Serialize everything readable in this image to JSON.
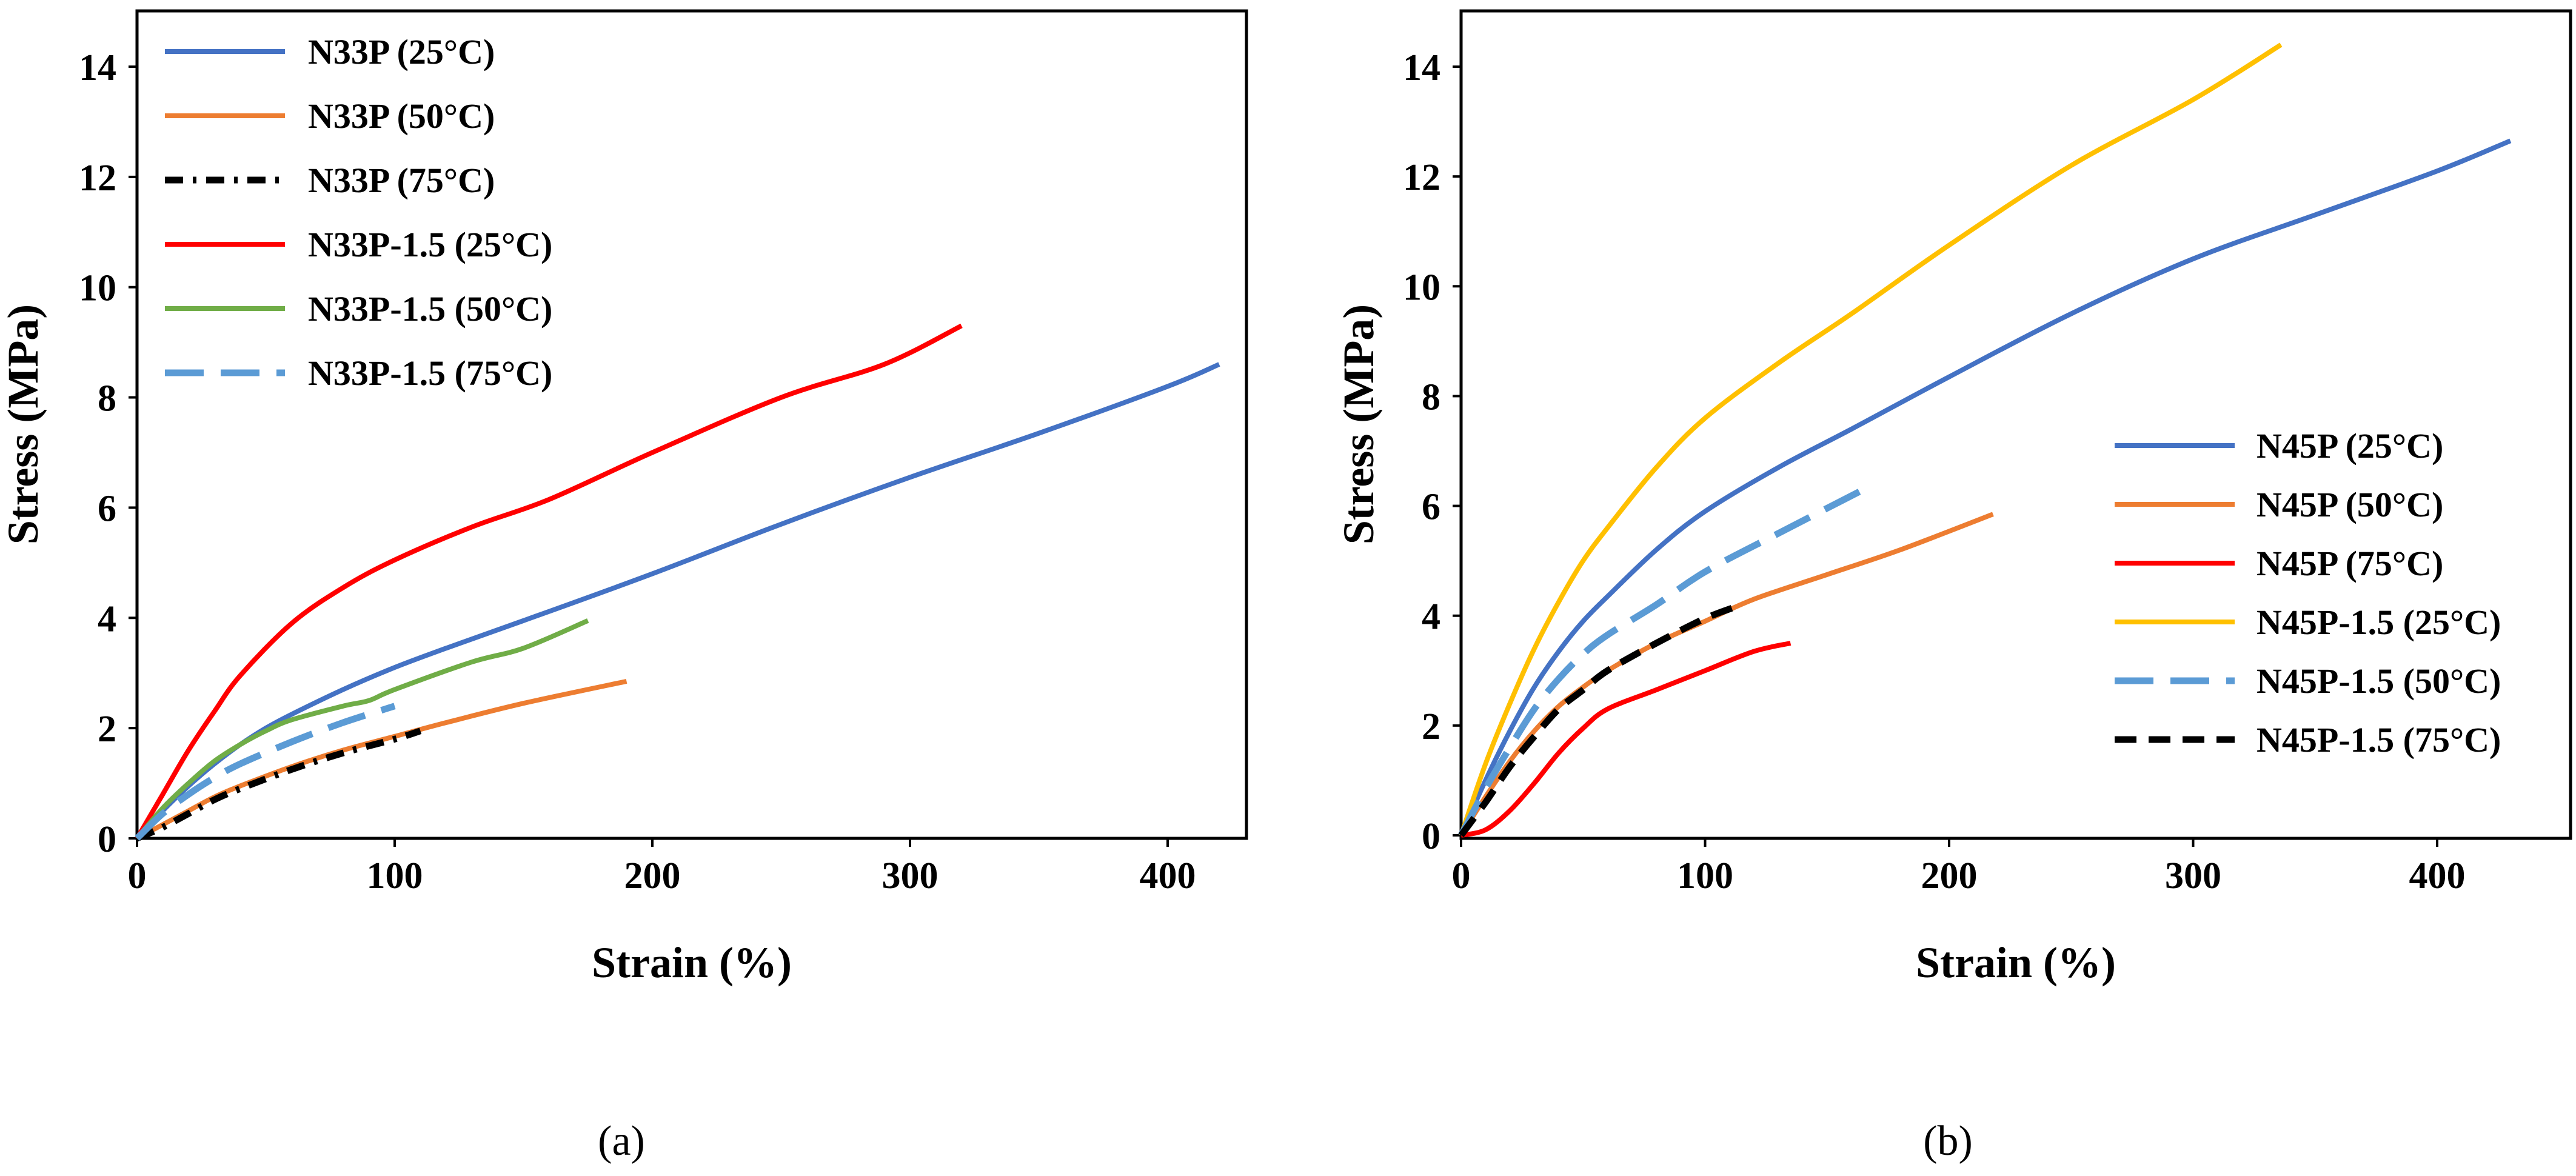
{
  "chart_data": [
    {
      "type": "line",
      "caption": "(a)",
      "xlabel": "Strain (%)",
      "ylabel": "Stress (MPa)",
      "xlim": [
        0,
        440
      ],
      "ylim": [
        0,
        15
      ],
      "xticks": [
        "0",
        "100",
        "200",
        "300",
        "400"
      ],
      "yticks": [
        "0",
        "2",
        "4",
        "6",
        "8",
        "10",
        "12",
        "14"
      ],
      "legend_position": "top-left",
      "series": [
        {
          "name": "N33P (25°C)",
          "color": "#4472C4",
          "style": "solid",
          "x": [
            0,
            10,
            20,
            30,
            40,
            50,
            60,
            80,
            100,
            120,
            150,
            200,
            250,
            300,
            350,
            400,
            420
          ],
          "y": [
            0,
            0.5,
            0.95,
            1.35,
            1.7,
            2.0,
            2.25,
            2.7,
            3.1,
            3.45,
            3.95,
            4.8,
            5.7,
            6.55,
            7.35,
            8.2,
            8.6
          ]
        },
        {
          "name": "N33P (50°C)",
          "color": "#ED7D31",
          "style": "solid",
          "x": [
            0,
            10,
            20,
            30,
            40,
            60,
            80,
            100,
            120,
            150,
            190
          ],
          "y": [
            0,
            0.25,
            0.5,
            0.75,
            0.95,
            1.3,
            1.6,
            1.85,
            2.1,
            2.45,
            2.85
          ]
        },
        {
          "name": "N33P (75°C)",
          "color": "#000000",
          "style": "dashdot",
          "x": [
            0,
            10,
            20,
            30,
            40,
            60,
            80,
            100,
            110
          ],
          "y": [
            0,
            0.2,
            0.45,
            0.7,
            0.9,
            1.25,
            1.55,
            1.8,
            1.95
          ]
        },
        {
          "name": "N33P-1.5 (25°C)",
          "color": "#FF0000",
          "style": "solid",
          "x": [
            0,
            10,
            20,
            30,
            40,
            60,
            80,
            100,
            130,
            160,
            200,
            250,
            290,
            320
          ],
          "y": [
            0,
            0.8,
            1.6,
            2.3,
            2.95,
            3.9,
            4.55,
            5.05,
            5.65,
            6.15,
            7.0,
            8.0,
            8.6,
            9.3
          ]
        },
        {
          "name": "N33P-1.5 (50°C)",
          "color": "#70AD47",
          "style": "solid",
          "x": [
            0,
            10,
            20,
            30,
            40,
            50,
            60,
            80,
            90,
            100,
            130,
            150,
            175
          ],
          "y": [
            0,
            0.55,
            1.0,
            1.4,
            1.7,
            1.95,
            2.15,
            2.4,
            2.5,
            2.7,
            3.2,
            3.45,
            3.95
          ]
        },
        {
          "name": "N33P-1.5 (75°C)",
          "color": "#5B9BD5",
          "style": "longdash",
          "x": [
            0,
            10,
            20,
            30,
            40,
            60,
            80,
            100
          ],
          "y": [
            0,
            0.45,
            0.8,
            1.1,
            1.35,
            1.75,
            2.1,
            2.4
          ]
        }
      ]
    },
    {
      "type": "line",
      "caption": "(b)",
      "xlabel": "Strain (%)",
      "ylabel": "Stress (MPa)",
      "xlim": [
        0,
        450
      ],
      "ylim": [
        0,
        15
      ],
      "xticks": [
        "0",
        "100",
        "200",
        "300",
        "400"
      ],
      "yticks": [
        "0",
        "2",
        "4",
        "6",
        "8",
        "10",
        "12",
        "14"
      ],
      "legend_position": "bottom-right",
      "series": [
        {
          "name": "N45P (25°C)",
          "color": "#4472C4",
          "style": "solid",
          "x": [
            0,
            10,
            20,
            30,
            40,
            50,
            60,
            80,
            100,
            130,
            160,
            200,
            250,
            300,
            350,
            400,
            430
          ],
          "y": [
            0,
            1.0,
            1.9,
            2.7,
            3.35,
            3.9,
            4.35,
            5.2,
            5.9,
            6.7,
            7.4,
            8.35,
            9.5,
            10.5,
            11.3,
            12.1,
            12.65
          ]
        },
        {
          "name": "N45P (50°C)",
          "color": "#ED7D31",
          "style": "solid",
          "x": [
            0,
            10,
            20,
            30,
            40,
            50,
            60,
            80,
            100,
            120,
            150,
            180,
            218
          ],
          "y": [
            0,
            0.7,
            1.35,
            1.9,
            2.35,
            2.7,
            3.0,
            3.5,
            3.9,
            4.3,
            4.75,
            5.2,
            5.85
          ]
        },
        {
          "name": "N45P (75°C)",
          "color": "#FF0000",
          "style": "solid",
          "x": [
            0,
            10,
            20,
            30,
            40,
            50,
            60,
            80,
            100,
            120,
            135
          ],
          "y": [
            0,
            0.1,
            0.45,
            0.95,
            1.5,
            1.95,
            2.3,
            2.65,
            3.0,
            3.35,
            3.5
          ]
        },
        {
          "name": "N45P-1.5 (25°C)",
          "color": "#FFC000",
          "style": "solid",
          "x": [
            0,
            10,
            20,
            30,
            40,
            50,
            60,
            80,
            100,
            130,
            160,
            200,
            250,
            300,
            336
          ],
          "y": [
            0,
            1.3,
            2.4,
            3.4,
            4.25,
            5.0,
            5.6,
            6.7,
            7.6,
            8.6,
            9.5,
            10.75,
            12.2,
            13.4,
            14.4
          ]
        },
        {
          "name": "N45P-1.5 (50°C)",
          "color": "#5B9BD5",
          "style": "longdash",
          "x": [
            0,
            10,
            20,
            30,
            40,
            50,
            60,
            80,
            100,
            130,
            165
          ],
          "y": [
            0,
            0.85,
            1.6,
            2.3,
            2.85,
            3.3,
            3.65,
            4.2,
            4.8,
            5.5,
            6.3
          ]
        },
        {
          "name": "N45P-1.5 (75°C)",
          "color": "#000000",
          "style": "dash",
          "x": [
            0,
            10,
            20,
            30,
            40,
            50,
            60,
            80,
            100,
            115
          ],
          "y": [
            0,
            0.6,
            1.25,
            1.8,
            2.3,
            2.65,
            3.0,
            3.5,
            3.95,
            4.2
          ]
        }
      ]
    }
  ]
}
